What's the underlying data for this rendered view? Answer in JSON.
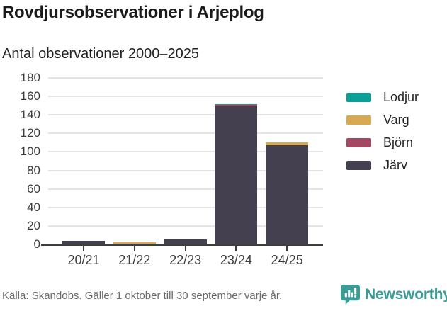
{
  "chart_data": {
    "type": "bar",
    "stacked": true,
    "title": "Rovdjursobservationer i Arjeplog",
    "subtitle": "Antal observationer 2000–2025",
    "categories": [
      "20/21",
      "21/22",
      "22/23",
      "23/24",
      "24/25"
    ],
    "series": [
      {
        "name": "Lodjur",
        "color": "#0AA098",
        "values": [
          0,
          0,
          0,
          1,
          0
        ]
      },
      {
        "name": "Varg",
        "color": "#D9A952",
        "values": [
          0,
          1,
          0,
          0,
          3
        ]
      },
      {
        "name": "Björn",
        "color": "#A34763",
        "values": [
          0,
          0,
          0,
          2,
          0
        ]
      },
      {
        "name": "Järv",
        "color": "#44404F",
        "values": [
          4,
          1,
          5,
          149,
          107
        ]
      }
    ],
    "totals": [
      4,
      2,
      5,
      152,
      110
    ],
    "xlabel": "",
    "ylabel": "",
    "ylim": [
      0,
      180
    ],
    "yticks": [
      0,
      20,
      40,
      60,
      80,
      100,
      120,
      140,
      160,
      180
    ],
    "grid": "horizontal",
    "legend_position": "right"
  },
  "footer": {
    "source": "Källa: Skandobs. Gäller 1 oktober till 30 september varje år.",
    "brand": "Newsworthy"
  },
  "colors": {
    "accent_teal": "#3A9C95",
    "grid": "#E4E4E4",
    "axis": "#3E3E3E",
    "title_text": "#1B1B1B",
    "muted_text": "#6A6A6A"
  }
}
